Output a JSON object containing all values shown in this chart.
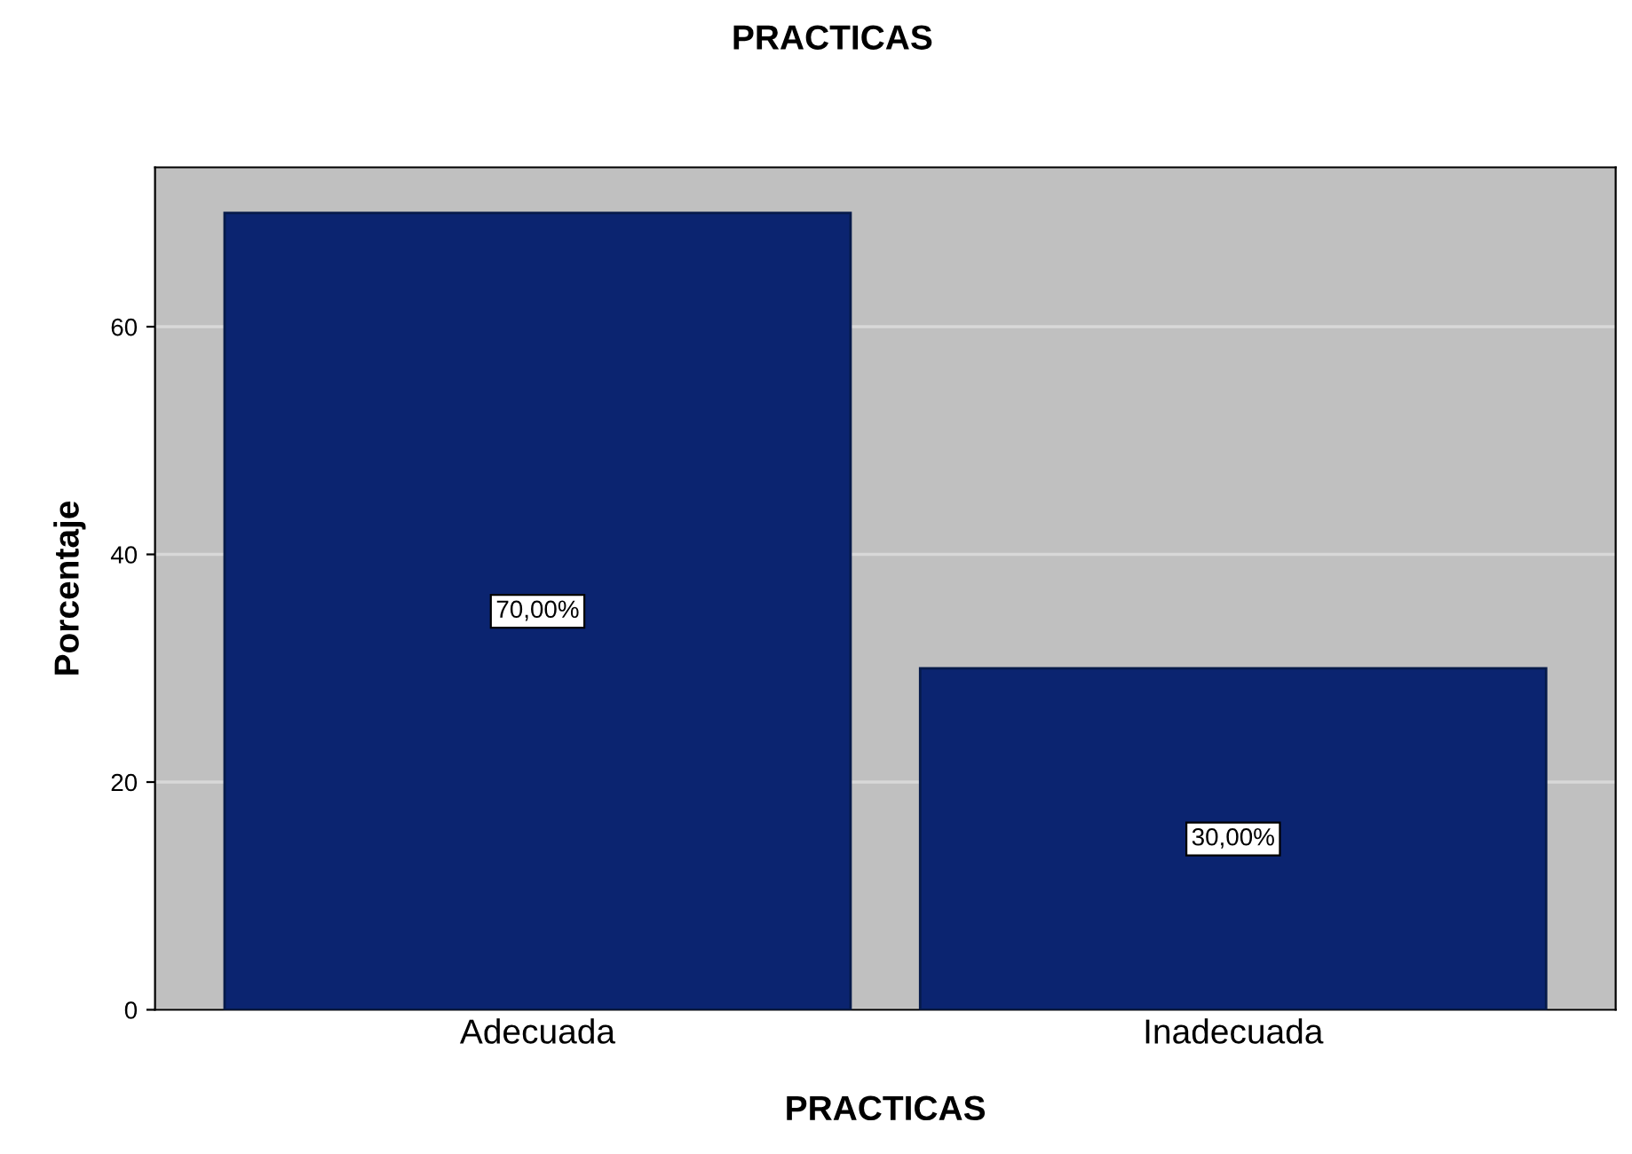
{
  "chart_data": {
    "type": "bar",
    "title": "PRACTICAS",
    "xlabel": "PRACTICAS",
    "ylabel": "Porcentaje",
    "categories": [
      "Adecuada",
      "Inadecuada"
    ],
    "series": [
      {
        "color": "#0b2470",
        "values": [
          70,
          30
        ],
        "value_labels": [
          "70,00%",
          "30,00%"
        ]
      }
    ],
    "ylim": [
      0,
      74
    ],
    "yticks": [
      0,
      20,
      40,
      60
    ],
    "grid": "y"
  }
}
